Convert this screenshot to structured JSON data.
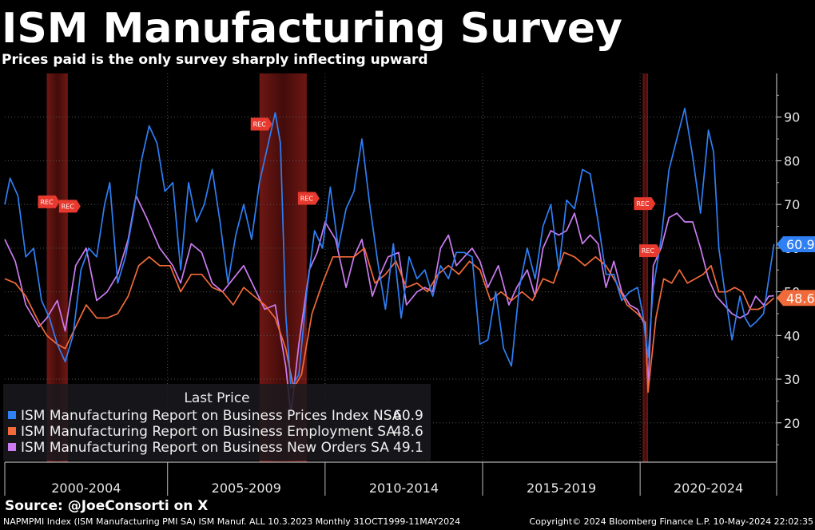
{
  "title": "ISM Manufacturing Survey",
  "subtitle": "Prices paid is the only survey sharply inflecting upward",
  "source": "Source: @JoeConsorti on X",
  "footer": {
    "left": "NAPMPMI Index (ISM Manufacturing PMI SA) ISM Manuf. ALL 10.3.2023  Monthly 31OCT1999-11MAY2024",
    "right": "Copyright© 2024 Bloomberg Finance L.P.   10-May-2024 22:02:35"
  },
  "legend": {
    "header": "Last Price",
    "rows": [
      {
        "label": "ISM Manufacturing Report on Business Prices Index NSA",
        "value": "60.9",
        "color": "#2f7ff5"
      },
      {
        "label": "ISM Manufacturing Report on Business Employment SA",
        "value": "48.6",
        "color": "#f26a3a"
      },
      {
        "label": "ISM Manufacturing Report on Business New Orders SA",
        "value": "49.1",
        "color": "#cc7cf2"
      }
    ]
  },
  "chart_data": {
    "type": "line",
    "x_start": "1999-11",
    "x_end": "2024-05",
    "ylim": [
      11,
      100
    ],
    "yticks": [
      20,
      30,
      40,
      50,
      60,
      70,
      80,
      90
    ],
    "x_period_labels": [
      "2000-2004",
      "2005-2009",
      "2010-2014",
      "2015-2019",
      "2020-2024"
    ],
    "recession_label": "REC",
    "recessions": [
      [
        "2001-03",
        "2001-11"
      ],
      [
        "2007-12",
        "2009-06"
      ],
      [
        "2020-02",
        "2020-04"
      ]
    ],
    "last_price_badges": [
      {
        "value": "60.9",
        "color": "#2f7ff5"
      },
      {
        "value": "48.6",
        "color": "#f26a3a"
      }
    ],
    "series": [
      {
        "name": "ISM Manufacturing Report on Business Prices Index NSA",
        "color": "#2f7ff5",
        "points": [
          [
            "1999-11",
            70
          ],
          [
            "2000-01",
            76
          ],
          [
            "2000-04",
            72
          ],
          [
            "2000-07",
            58
          ],
          [
            "2000-10",
            60
          ],
          [
            "2001-01",
            48
          ],
          [
            "2001-04",
            44
          ],
          [
            "2001-07",
            38
          ],
          [
            "2001-10",
            34
          ],
          [
            "2002-01",
            40
          ],
          [
            "2002-04",
            55
          ],
          [
            "2002-07",
            60
          ],
          [
            "2002-10",
            58
          ],
          [
            "2003-01",
            70
          ],
          [
            "2003-03",
            75
          ],
          [
            "2003-06",
            52
          ],
          [
            "2003-09",
            58
          ],
          [
            "2003-12",
            68
          ],
          [
            "2004-03",
            80
          ],
          [
            "2004-06",
            88
          ],
          [
            "2004-09",
            84
          ],
          [
            "2004-12",
            73
          ],
          [
            "2005-03",
            75
          ],
          [
            "2005-06",
            55
          ],
          [
            "2005-09",
            75
          ],
          [
            "2005-12",
            66
          ],
          [
            "2006-03",
            70
          ],
          [
            "2006-06",
            78
          ],
          [
            "2006-09",
            66
          ],
          [
            "2006-12",
            52
          ],
          [
            "2007-03",
            63
          ],
          [
            "2007-06",
            70
          ],
          [
            "2007-09",
            62
          ],
          [
            "2007-12",
            75
          ],
          [
            "2008-03",
            83
          ],
          [
            "2008-06",
            91
          ],
          [
            "2008-08",
            84
          ],
          [
            "2008-10",
            45
          ],
          [
            "2008-12",
            28
          ],
          [
            "2009-03",
            31
          ],
          [
            "2009-06",
            50
          ],
          [
            "2009-09",
            64
          ],
          [
            "2009-12",
            60
          ],
          [
            "2010-03",
            74
          ],
          [
            "2010-06",
            60
          ],
          [
            "2010-09",
            69
          ],
          [
            "2010-12",
            73
          ],
          [
            "2011-03",
            85
          ],
          [
            "2011-06",
            70
          ],
          [
            "2011-09",
            57
          ],
          [
            "2011-12",
            46
          ],
          [
            "2012-03",
            61
          ],
          [
            "2012-06",
            44
          ],
          [
            "2012-09",
            58
          ],
          [
            "2012-12",
            53
          ],
          [
            "2013-03",
            55
          ],
          [
            "2013-06",
            49
          ],
          [
            "2013-09",
            56
          ],
          [
            "2013-12",
            53
          ],
          [
            "2014-03",
            59
          ],
          [
            "2014-06",
            59
          ],
          [
            "2014-09",
            58
          ],
          [
            "2014-12",
            38
          ],
          [
            "2015-03",
            39
          ],
          [
            "2015-06",
            50
          ],
          [
            "2015-09",
            37
          ],
          [
            "2015-12",
            33
          ],
          [
            "2016-03",
            51
          ],
          [
            "2016-06",
            60
          ],
          [
            "2016-09",
            53
          ],
          [
            "2016-12",
            65
          ],
          [
            "2017-03",
            70
          ],
          [
            "2017-06",
            55
          ],
          [
            "2017-09",
            71
          ],
          [
            "2017-12",
            69
          ],
          [
            "2018-03",
            78
          ],
          [
            "2018-06",
            77
          ],
          [
            "2018-09",
            66
          ],
          [
            "2018-12",
            54
          ],
          [
            "2019-03",
            54
          ],
          [
            "2019-06",
            48
          ],
          [
            "2019-09",
            50
          ],
          [
            "2019-12",
            51
          ],
          [
            "2020-02",
            45
          ],
          [
            "2020-04",
            35
          ],
          [
            "2020-06",
            51
          ],
          [
            "2020-09",
            62
          ],
          [
            "2020-12",
            78
          ],
          [
            "2021-03",
            85
          ],
          [
            "2021-06",
            92
          ],
          [
            "2021-09",
            81
          ],
          [
            "2021-12",
            68
          ],
          [
            "2022-03",
            87
          ],
          [
            "2022-05",
            82
          ],
          [
            "2022-07",
            60
          ],
          [
            "2022-09",
            51
          ],
          [
            "2022-12",
            39
          ],
          [
            "2023-03",
            49
          ],
          [
            "2023-05",
            44
          ],
          [
            "2023-07",
            42
          ],
          [
            "2023-09",
            43
          ],
          [
            "2023-12",
            45
          ],
          [
            "2024-02",
            53
          ],
          [
            "2024-04",
            60.9
          ]
        ]
      },
      {
        "name": "ISM Manufacturing Report on Business Employment SA",
        "color": "#f26a3a",
        "points": [
          [
            "1999-11",
            53
          ],
          [
            "2000-03",
            52
          ],
          [
            "2000-07",
            49
          ],
          [
            "2000-12",
            43
          ],
          [
            "2001-03",
            40
          ],
          [
            "2001-07",
            38
          ],
          [
            "2001-10",
            37
          ],
          [
            "2002-02",
            42
          ],
          [
            "2002-06",
            47
          ],
          [
            "2002-10",
            44
          ],
          [
            "2003-02",
            44
          ],
          [
            "2003-06",
            45
          ],
          [
            "2003-10",
            49
          ],
          [
            "2004-02",
            56
          ],
          [
            "2004-06",
            58
          ],
          [
            "2004-10",
            56
          ],
          [
            "2005-02",
            56
          ],
          [
            "2005-06",
            50
          ],
          [
            "2005-10",
            54
          ],
          [
            "2006-02",
            54
          ],
          [
            "2006-06",
            51
          ],
          [
            "2006-10",
            50
          ],
          [
            "2007-02",
            47
          ],
          [
            "2007-06",
            51
          ],
          [
            "2007-10",
            49
          ],
          [
            "2008-02",
            47
          ],
          [
            "2008-06",
            44
          ],
          [
            "2008-10",
            37
          ],
          [
            "2009-01",
            28
          ],
          [
            "2009-04",
            31
          ],
          [
            "2009-08",
            45
          ],
          [
            "2009-12",
            52
          ],
          [
            "2010-04",
            58
          ],
          [
            "2010-08",
            58
          ],
          [
            "2010-12",
            58
          ],
          [
            "2011-04",
            60
          ],
          [
            "2011-08",
            52
          ],
          [
            "2011-12",
            54
          ],
          [
            "2012-04",
            57
          ],
          [
            "2012-08",
            51
          ],
          [
            "2012-12",
            52
          ],
          [
            "2013-04",
            50
          ],
          [
            "2013-08",
            54
          ],
          [
            "2013-12",
            56
          ],
          [
            "2014-04",
            54
          ],
          [
            "2014-08",
            57
          ],
          [
            "2014-12",
            55
          ],
          [
            "2015-04",
            48
          ],
          [
            "2015-08",
            50
          ],
          [
            "2015-12",
            48
          ],
          [
            "2016-04",
            50
          ],
          [
            "2016-08",
            48
          ],
          [
            "2016-12",
            53
          ],
          [
            "2017-04",
            52
          ],
          [
            "2017-08",
            59
          ],
          [
            "2017-12",
            58
          ],
          [
            "2018-04",
            56
          ],
          [
            "2018-08",
            58
          ],
          [
            "2018-12",
            56
          ],
          [
            "2019-04",
            52
          ],
          [
            "2019-08",
            47
          ],
          [
            "2019-12",
            45
          ],
          [
            "2020-03",
            43
          ],
          [
            "2020-04",
            27
          ],
          [
            "2020-07",
            44
          ],
          [
            "2020-10",
            53
          ],
          [
            "2021-01",
            52
          ],
          [
            "2021-04",
            55
          ],
          [
            "2021-07",
            52
          ],
          [
            "2021-10",
            53
          ],
          [
            "2022-01",
            54
          ],
          [
            "2022-04",
            56
          ],
          [
            "2022-07",
            50
          ],
          [
            "2022-10",
            50
          ],
          [
            "2023-01",
            51
          ],
          [
            "2023-04",
            50
          ],
          [
            "2023-07",
            46
          ],
          [
            "2023-10",
            46
          ],
          [
            "2024-01",
            47
          ],
          [
            "2024-04",
            48.6
          ]
        ]
      },
      {
        "name": "ISM Manufacturing Report on Business New Orders SA",
        "color": "#cc7cf2",
        "points": [
          [
            "1999-11",
            62
          ],
          [
            "2000-03",
            57
          ],
          [
            "2000-07",
            47
          ],
          [
            "2000-12",
            42
          ],
          [
            "2001-03",
            44
          ],
          [
            "2001-07",
            48
          ],
          [
            "2001-10",
            41
          ],
          [
            "2002-02",
            56
          ],
          [
            "2002-06",
            60
          ],
          [
            "2002-10",
            48
          ],
          [
            "2003-02",
            50
          ],
          [
            "2003-06",
            54
          ],
          [
            "2003-10",
            62
          ],
          [
            "2004-01",
            72
          ],
          [
            "2004-05",
            67
          ],
          [
            "2004-10",
            60
          ],
          [
            "2005-03",
            56
          ],
          [
            "2005-06",
            52
          ],
          [
            "2005-10",
            61
          ],
          [
            "2006-02",
            59
          ],
          [
            "2006-06",
            52
          ],
          [
            "2006-10",
            50
          ],
          [
            "2007-02",
            53
          ],
          [
            "2007-06",
            56
          ],
          [
            "2007-10",
            51
          ],
          [
            "2008-02",
            46
          ],
          [
            "2008-06",
            47
          ],
          [
            "2008-10",
            33
          ],
          [
            "2008-12",
            22
          ],
          [
            "2009-03",
            38
          ],
          [
            "2009-07",
            55
          ],
          [
            "2009-10",
            59
          ],
          [
            "2010-01",
            66
          ],
          [
            "2010-05",
            62
          ],
          [
            "2010-09",
            51
          ],
          [
            "2010-12",
            58
          ],
          [
            "2011-03",
            62
          ],
          [
            "2011-07",
            49
          ],
          [
            "2011-10",
            54
          ],
          [
            "2012-01",
            58
          ],
          [
            "2012-05",
            59
          ],
          [
            "2012-08",
            47
          ],
          [
            "2012-12",
            50
          ],
          [
            "2013-03",
            51
          ],
          [
            "2013-06",
            50
          ],
          [
            "2013-09",
            60
          ],
          [
            "2013-12",
            63
          ],
          [
            "2014-03",
            56
          ],
          [
            "2014-06",
            58
          ],
          [
            "2014-09",
            60
          ],
          [
            "2014-12",
            57
          ],
          [
            "2015-03",
            51
          ],
          [
            "2015-07",
            56
          ],
          [
            "2015-11",
            47
          ],
          [
            "2016-02",
            51
          ],
          [
            "2016-06",
            55
          ],
          [
            "2016-09",
            49
          ],
          [
            "2016-12",
            60
          ],
          [
            "2017-03",
            64
          ],
          [
            "2017-06",
            63
          ],
          [
            "2017-09",
            64
          ],
          [
            "2017-12",
            68
          ],
          [
            "2018-03",
            61
          ],
          [
            "2018-06",
            63
          ],
          [
            "2018-09",
            61
          ],
          [
            "2018-12",
            51
          ],
          [
            "2019-03",
            57
          ],
          [
            "2019-06",
            50
          ],
          [
            "2019-09",
            47
          ],
          [
            "2019-12",
            46
          ],
          [
            "2020-03",
            42
          ],
          [
            "2020-04",
            28
          ],
          [
            "2020-06",
            56
          ],
          [
            "2020-09",
            60
          ],
          [
            "2020-12",
            67
          ],
          [
            "2021-03",
            68
          ],
          [
            "2021-06",
            66
          ],
          [
            "2021-09",
            66
          ],
          [
            "2021-12",
            60
          ],
          [
            "2022-03",
            53
          ],
          [
            "2022-06",
            49
          ],
          [
            "2022-09",
            47
          ],
          [
            "2022-12",
            45
          ],
          [
            "2023-03",
            44
          ],
          [
            "2023-06",
            45
          ],
          [
            "2023-09",
            49
          ],
          [
            "2023-12",
            47
          ],
          [
            "2024-02",
            49
          ],
          [
            "2024-04",
            49.1
          ]
        ]
      }
    ]
  }
}
